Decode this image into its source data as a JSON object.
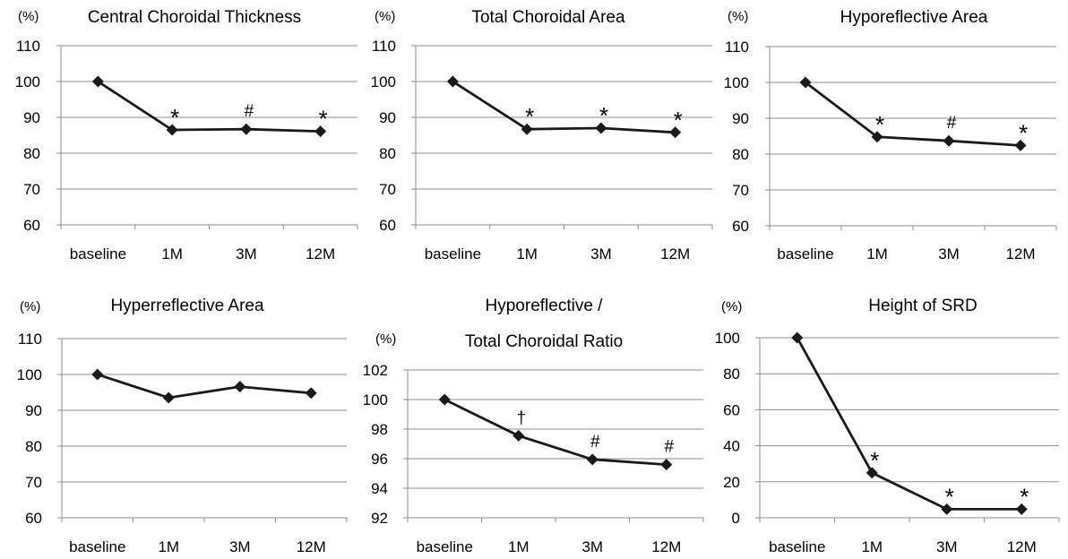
{
  "chart_data": [
    {
      "type": "line",
      "title": [
        "Central Choroidal Thickness"
      ],
      "unit_label": "(%)",
      "categories": [
        "baseline",
        "1M",
        "3M",
        "12M"
      ],
      "values": [
        100,
        86.5,
        86.7,
        86.1
      ],
      "annotations": [
        "",
        "*",
        "#",
        "*"
      ],
      "ylim": [
        60,
        110
      ],
      "yticks": [
        60,
        70,
        80,
        90,
        100,
        110
      ],
      "grid": true,
      "colors": {
        "line": "#1a1a1a",
        "grid": "#8c8c8c"
      }
    },
    {
      "type": "line",
      "title": [
        "Total Choroidal Area"
      ],
      "unit_label": "(%)",
      "categories": [
        "baseline",
        "1M",
        "3M",
        "12M"
      ],
      "values": [
        100,
        86.7,
        87.0,
        85.8
      ],
      "annotations": [
        "",
        "*",
        "*",
        "*"
      ],
      "ylim": [
        60,
        110
      ],
      "yticks": [
        60,
        70,
        80,
        90,
        100,
        110
      ],
      "grid": true,
      "colors": {
        "line": "#1a1a1a",
        "grid": "#8c8c8c"
      }
    },
    {
      "type": "line",
      "title": [
        "Hyporeflective Area"
      ],
      "unit_label": "(%)",
      "categories": [
        "baseline",
        "1M",
        "3M",
        "12M"
      ],
      "values": [
        100,
        84.8,
        83.7,
        82.4
      ],
      "annotations": [
        "",
        "*",
        "#",
        "*"
      ],
      "ylim": [
        60,
        110
      ],
      "yticks": [
        60,
        70,
        80,
        90,
        100,
        110
      ],
      "grid": true,
      "colors": {
        "line": "#1a1a1a",
        "grid": "#8c8c8c"
      }
    },
    {
      "type": "line",
      "title": [
        "Hyperreflective Area"
      ],
      "unit_label": "(%)",
      "categories": [
        "baseline",
        "1M",
        "3M",
        "12M"
      ],
      "values": [
        100,
        93.5,
        96.6,
        94.8
      ],
      "annotations": [
        "",
        "",
        "",
        ""
      ],
      "ylim": [
        60,
        110
      ],
      "yticks": [
        60,
        70,
        80,
        90,
        100,
        110
      ],
      "grid": true,
      "colors": {
        "line": "#1a1a1a",
        "grid": "#8c8c8c"
      }
    },
    {
      "type": "line",
      "title": [
        "Hyporeflective /",
        "Total Choroidal Ratio"
      ],
      "unit_label": "(%)",
      "categories": [
        "baseline",
        "1M",
        "3M",
        "12M"
      ],
      "values": [
        100,
        97.55,
        95.95,
        95.6
      ],
      "annotations": [
        "",
        "†",
        "#",
        "#"
      ],
      "ylim": [
        92,
        102
      ],
      "yticks": [
        92,
        94,
        96,
        98,
        100,
        102
      ],
      "grid": true,
      "colors": {
        "line": "#1a1a1a",
        "grid": "#8c8c8c"
      }
    },
    {
      "type": "line",
      "title": [
        "Height of SRD"
      ],
      "unit_label": "(%)",
      "categories": [
        "baseline",
        "1M",
        "3M",
        "12M"
      ],
      "values": [
        100,
        25,
        4.8,
        4.8
      ],
      "annotations": [
        "",
        "*",
        "*",
        "*"
      ],
      "ylim": [
        0,
        100
      ],
      "yticks": [
        0,
        20,
        40,
        60,
        80,
        100
      ],
      "grid": true,
      "colors": {
        "line": "#1a1a1a",
        "grid": "#8c8c8c"
      }
    }
  ]
}
